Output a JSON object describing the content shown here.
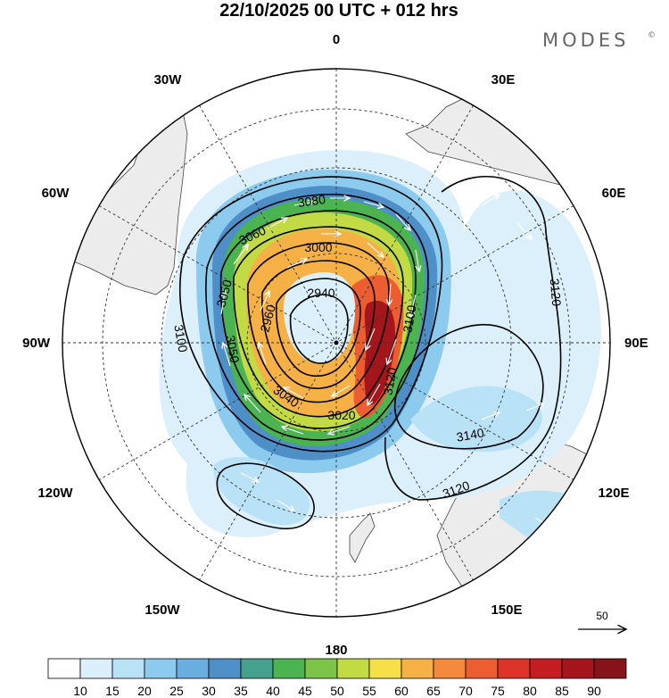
{
  "title": "22/10/2025  00 UTC  + 012 hrs",
  "brand": {
    "name": "MODES",
    "mark": "©"
  },
  "map": {
    "projection": "polar stereographic (southern hemisphere)",
    "longitude_labels": [
      {
        "text": "0",
        "lon": 0
      },
      {
        "text": "30E",
        "lon": 30
      },
      {
        "text": "60E",
        "lon": 60
      },
      {
        "text": "90E",
        "lon": 90
      },
      {
        "text": "120E",
        "lon": 120
      },
      {
        "text": "150E",
        "lon": 150
      },
      {
        "text": "180",
        "lon": 180
      },
      {
        "text": "150W",
        "lon": -150
      },
      {
        "text": "120W",
        "lon": -120
      },
      {
        "text": "90W",
        "lon": -90
      },
      {
        "text": "60W",
        "lon": -60
      },
      {
        "text": "30W",
        "lon": -30
      }
    ],
    "contour_labels": [
      "3080",
      "3060",
      "3000",
      "3050",
      "2940",
      "2960",
      "3100",
      "3050",
      "3040",
      "3020",
      "3120",
      "3100",
      "3140",
      "3120",
      "3120"
    ],
    "wind_speed_units_reference": "50"
  },
  "colorbar": {
    "labels": [
      "10",
      "15",
      "20",
      "25",
      "30",
      "35",
      "40",
      "45",
      "50",
      "55",
      "60",
      "65",
      "70",
      "75",
      "80",
      "85",
      "90"
    ],
    "colors": [
      "#ffffff",
      "#dcf0fb",
      "#b9e2f7",
      "#8ccbee",
      "#6aaedf",
      "#4f8fc8",
      "#45a08e",
      "#4bb350",
      "#7cc447",
      "#c2da43",
      "#f7df4a",
      "#f6b146",
      "#f38a3b",
      "#ec5d31",
      "#de3329",
      "#c41e23",
      "#a5161c",
      "#861318"
    ]
  }
}
